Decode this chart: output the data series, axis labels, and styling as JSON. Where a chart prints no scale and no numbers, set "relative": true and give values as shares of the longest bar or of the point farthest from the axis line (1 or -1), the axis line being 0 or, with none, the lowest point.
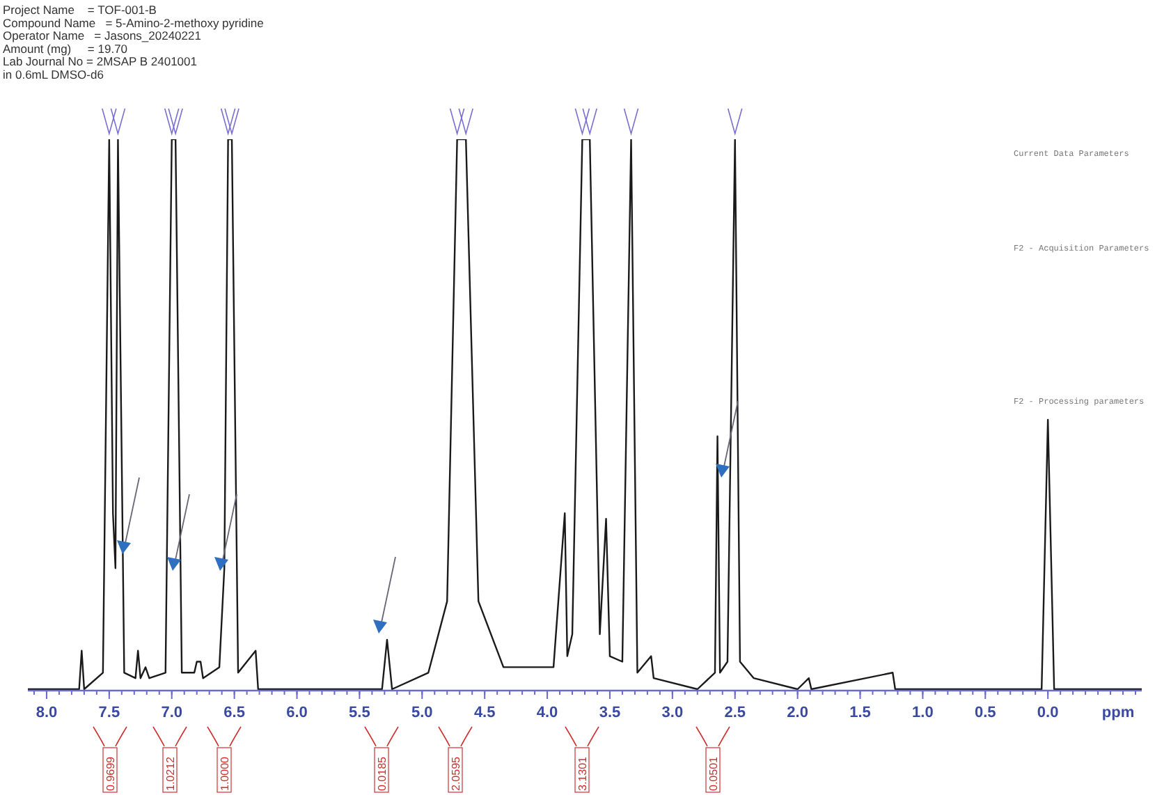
{
  "chart_data": {
    "type": "line",
    "relative": true,
    "xlabel": "ppm",
    "xlim": [
      8.15,
      -0.75
    ],
    "xticks": [
      {
        "value": 8,
        "label": "8.0"
      },
      {
        "value": 7.5,
        "label": "7.5"
      },
      {
        "value": 7,
        "label": "7.0"
      },
      {
        "value": 6.5,
        "label": "6.5"
      },
      {
        "value": 6,
        "label": "6.0"
      },
      {
        "value": 5.5,
        "label": "5.5"
      },
      {
        "value": 5,
        "label": "5.0"
      },
      {
        "value": 4.5,
        "label": "4.5"
      },
      {
        "value": 4,
        "label": "4.0"
      },
      {
        "value": 3.5,
        "label": "3.5"
      },
      {
        "value": 3,
        "label": "3.0"
      },
      {
        "value": 2.5,
        "label": "2.5"
      },
      {
        "value": 2,
        "label": "2.0"
      },
      {
        "value": 1.5,
        "label": "1.5"
      },
      {
        "value": 1,
        "label": "1.0"
      },
      {
        "value": 0.5,
        "label": "0.5"
      },
      {
        "value": 0,
        "label": "0.0"
      }
    ],
    "tick_labels": "x",
    "grid": false,
    "marker": "none",
    "line_style": "solid",
    "series": [
      {
        "color": "#1a1a1a",
        "x": [
          8.15,
          7.74,
          7.72,
          7.7,
          7.55,
          7.5,
          7.47,
          7.45,
          7.43,
          7.38,
          7.29,
          7.27,
          7.25,
          7.21,
          7.18,
          7.05,
          7.0,
          6.97,
          6.92,
          6.82,
          6.8,
          6.77,
          6.75,
          6.62,
          6.58,
          6.55,
          6.52,
          6.47,
          6.33,
          6.31,
          5.6,
          5.32,
          5.28,
          5.24,
          4.95,
          4.8,
          4.72,
          4.65,
          4.55,
          4.35,
          3.95,
          3.86,
          3.84,
          3.8,
          3.72,
          3.66,
          3.58,
          3.53,
          3.5,
          3.4,
          3.33,
          3.28,
          3.17,
          3.15,
          2.8,
          2.66,
          2.64,
          2.62,
          2.56,
          2.5,
          2.46,
          2.35,
          2.0,
          1.91,
          1.89,
          1.24,
          1.22,
          0.05,
          0.0,
          -0.05,
          -0.75
        ],
        "values": [
          0,
          0,
          0.07,
          0,
          0.03,
          1,
          0.32,
          0.22,
          1,
          0.03,
          0.02,
          0.07,
          0.02,
          0.04,
          0.02,
          0.03,
          1,
          1,
          0.03,
          0.03,
          0.05,
          0.05,
          0.02,
          0.04,
          0.22,
          1,
          1,
          0.03,
          0.07,
          0,
          0,
          0,
          0.09,
          0,
          0.03,
          0.16,
          1,
          1,
          0.16,
          0.04,
          0.04,
          0.32,
          0.06,
          0.1,
          1,
          1,
          0.1,
          0.31,
          0.06,
          0.05,
          1,
          0.03,
          0.06,
          0.02,
          0,
          0.03,
          0.46,
          0.03,
          0.05,
          1,
          0.05,
          0.02,
          0,
          0.02,
          0,
          0.03,
          0,
          0,
          0.49,
          0,
          0
        ]
      }
    ],
    "annotations": [
      "Project Name    = TOF-001-B",
      "Compound Name   = 5-Amino-2-methoxy pyridine",
      "Operator Name   = Jasons_20240221",
      "Amount (mg)     = 19.70",
      "Lab Journal No = 2MSAP B 2401001",
      "in 0.6mL DMSO-d6",
      "0.9699",
      "1.0212",
      "1.0000",
      "0.0185",
      "2.0595",
      "3.1301",
      "0.0501",
      "Current Data Parameters",
      "F2 - Acquisition Parameters",
      "F2 - Processing parameters"
    ]
  }
}
